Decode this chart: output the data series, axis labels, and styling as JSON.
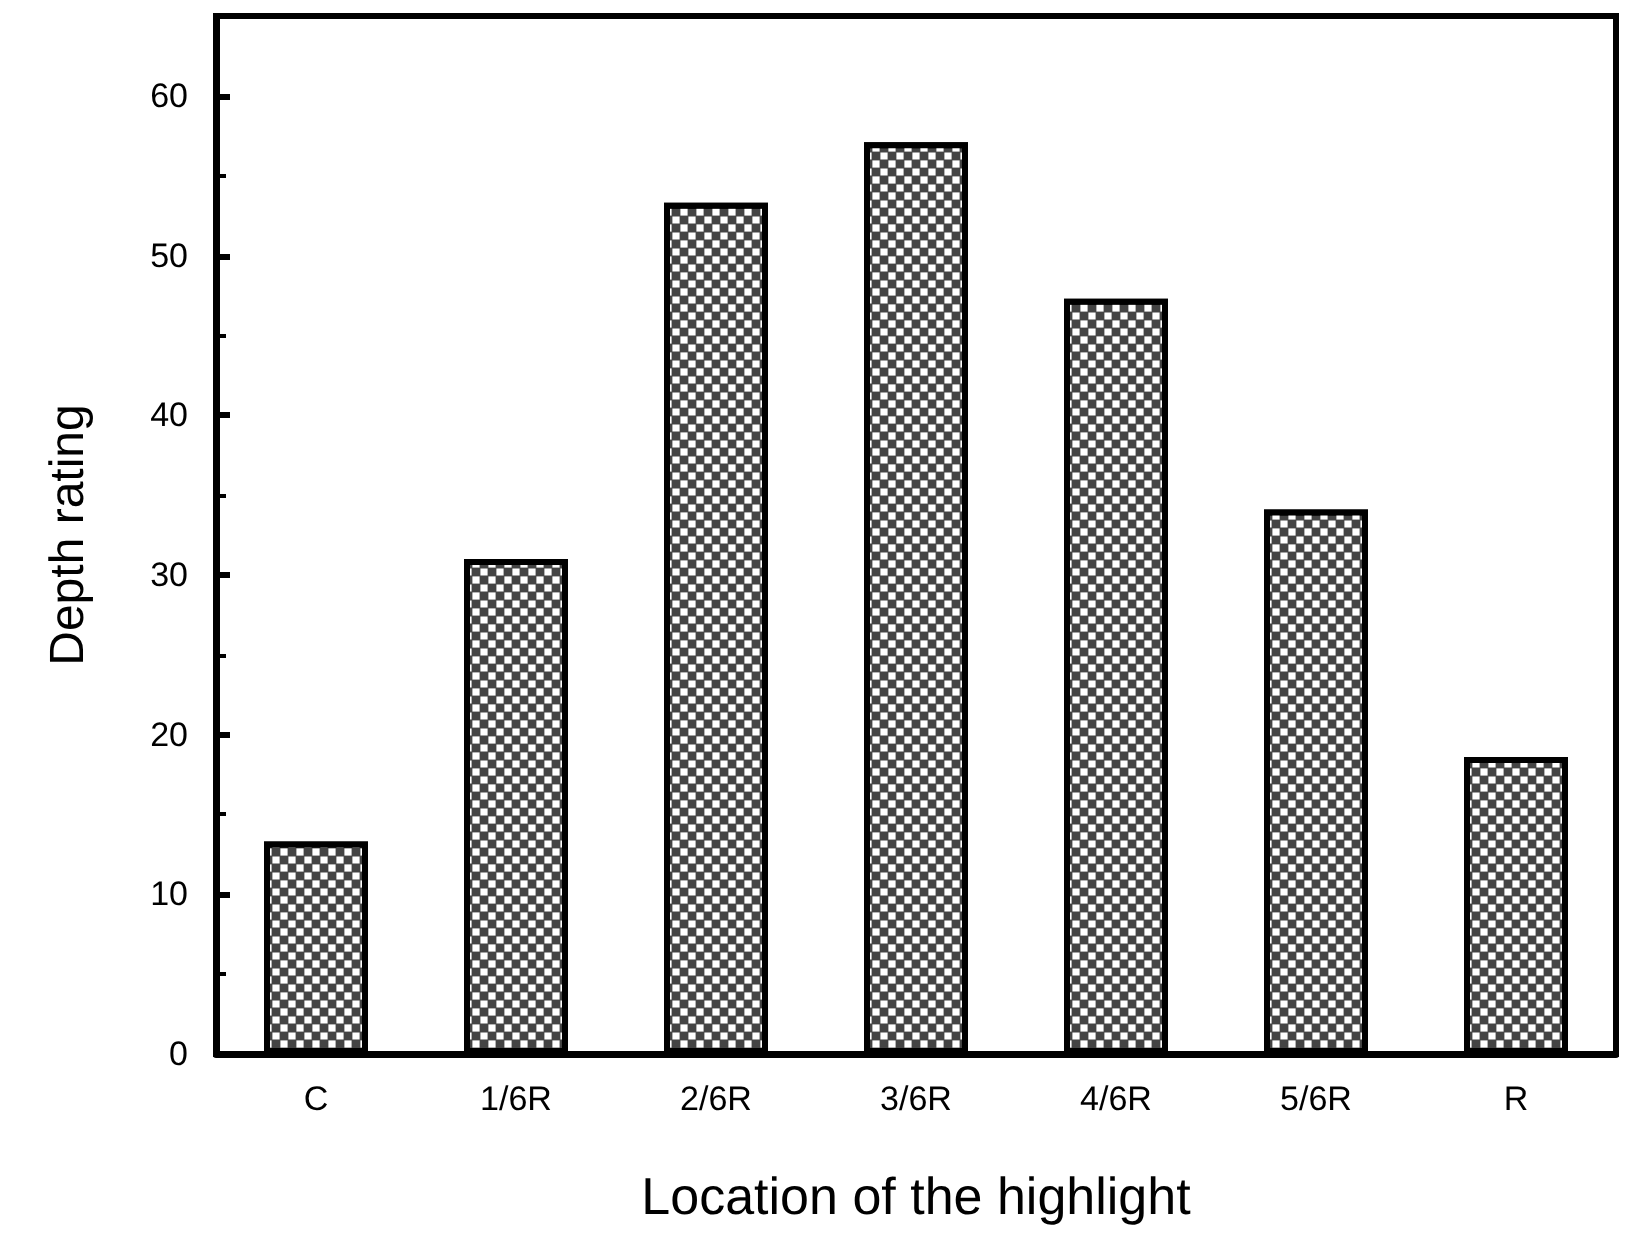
{
  "chart_data": {
    "type": "bar",
    "xlabel": "Location of the highlight",
    "ylabel": "Depth rating",
    "categories": [
      "C",
      "1/6R",
      "2/6R",
      "3/6R",
      "4/6R",
      "5/6R",
      "R"
    ],
    "values": [
      13.3,
      31,
      53.3,
      57.1,
      47.3,
      34.1,
      18.6
    ],
    "color": "#444444",
    "ylim": [
      0,
      65
    ],
    "yticks": [
      0,
      10,
      20,
      30,
      40,
      50,
      60
    ],
    "grid": false
  }
}
